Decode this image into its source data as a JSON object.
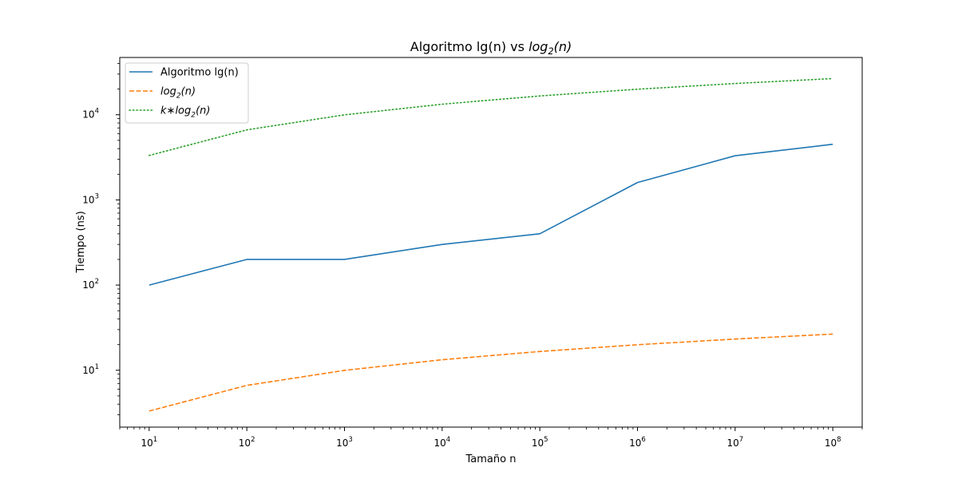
{
  "chart_data": {
    "type": "line",
    "title": "Algoritmo lg(n) vs log2(n)",
    "title_rich": {
      "plain": "Algoritmo lg(n) vs ",
      "italic": "log",
      "sub": "2",
      "tail": "(n)"
    },
    "xlabel": "Tamaño n",
    "ylabel": "Tiempo (ns)",
    "x_scale": "log",
    "y_scale": "log",
    "xlim": [
      5,
      200000000
    ],
    "ylim": [
      2.15,
      47000
    ],
    "x_major_ticks": [
      10,
      100,
      1000,
      10000,
      100000,
      1000000,
      10000000,
      100000000
    ],
    "y_major_ticks": [
      10,
      100,
      1000,
      10000
    ],
    "x_tick_labels": [
      {
        "base": "10",
        "exp": "1"
      },
      {
        "base": "10",
        "exp": "2"
      },
      {
        "base": "10",
        "exp": "3"
      },
      {
        "base": "10",
        "exp": "4"
      },
      {
        "base": "10",
        "exp": "5"
      },
      {
        "base": "10",
        "exp": "6"
      },
      {
        "base": "10",
        "exp": "7"
      },
      {
        "base": "10",
        "exp": "8"
      }
    ],
    "y_tick_labels": [
      {
        "base": "10",
        "exp": "1"
      },
      {
        "base": "10",
        "exp": "2"
      },
      {
        "base": "10",
        "exp": "3"
      },
      {
        "base": "10",
        "exp": "4"
      }
    ],
    "grid": false,
    "legend_position": "top-left",
    "x": [
      10,
      100,
      1000,
      10000,
      100000,
      1000000,
      10000000,
      100000000
    ],
    "series": [
      {
        "name": "Algoritmo lg(n)",
        "label_rich": {
          "plain": "Algoritmo lg(n)"
        },
        "values": [
          100,
          200,
          200,
          300,
          400,
          1600,
          3300,
          4500
        ],
        "color": "#1f77b4",
        "style": "solid"
      },
      {
        "name": "log2(n)",
        "label_rich": {
          "italic": "log",
          "sub": "2",
          "tail": "(n)"
        },
        "values": [
          3.32,
          6.64,
          9.97,
          13.29,
          16.61,
          19.93,
          23.25,
          26.58
        ],
        "color": "#ff7f0e",
        "style": "dashed"
      },
      {
        "name": "k*log2(n)",
        "label_rich": {
          "italic_pre": "k",
          "op": "∗",
          "italic": "log",
          "sub": "2",
          "tail": "(n)"
        },
        "values": [
          3322,
          6644,
          9966,
          13288,
          16610,
          19932,
          23254,
          26575
        ],
        "color": "#2ca02c",
        "style": "dotted"
      }
    ]
  }
}
